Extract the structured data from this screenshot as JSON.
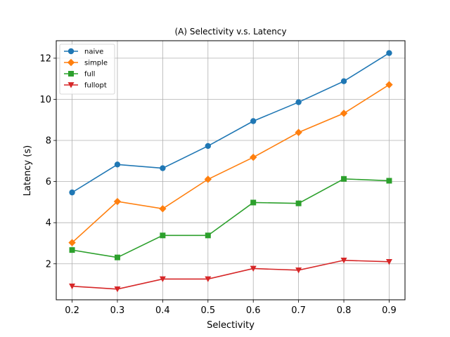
{
  "chart_data": {
    "type": "line",
    "title": "(A) Selectivity v.s. Latency",
    "xlabel": "Selectivity",
    "ylabel": "Latency (s)",
    "x": [
      0.2,
      0.3,
      0.4,
      0.5,
      0.6,
      0.7,
      0.8,
      0.9
    ],
    "xlim": [
      0.165,
      0.935
    ],
    "ylim": [
      0.25,
      12.85
    ],
    "xticks": [
      0.2,
      0.3,
      0.4,
      0.5,
      0.6,
      0.7,
      0.8,
      0.9
    ],
    "xtick_labels": [
      "0.2",
      "0.3",
      "0.4",
      "0.5",
      "0.6",
      "0.7",
      "0.8",
      "0.9"
    ],
    "yticks": [
      2,
      4,
      6,
      8,
      10,
      12
    ],
    "ytick_labels": [
      "2",
      "4",
      "6",
      "8",
      "10",
      "12"
    ],
    "grid": true,
    "legend_position": "top-left",
    "series": [
      {
        "name": "naive",
        "color": "#1f77b4",
        "marker": "circle",
        "values": [
          5.47,
          6.83,
          6.65,
          7.73,
          8.94,
          9.86,
          10.88,
          12.25
        ]
      },
      {
        "name": "simple",
        "color": "#ff7f0e",
        "marker": "diamond",
        "values": [
          3.03,
          5.03,
          4.68,
          6.11,
          7.18,
          8.39,
          9.32,
          10.71
        ]
      },
      {
        "name": "full",
        "color": "#2ca02c",
        "marker": "square",
        "values": [
          2.67,
          2.31,
          3.38,
          3.38,
          4.98,
          4.94,
          6.13,
          6.04
        ]
      },
      {
        "name": "fullopt",
        "color": "#d62728",
        "marker": "triangle-down",
        "values": [
          0.91,
          0.77,
          1.26,
          1.26,
          1.77,
          1.69,
          2.17,
          2.1
        ]
      }
    ]
  }
}
